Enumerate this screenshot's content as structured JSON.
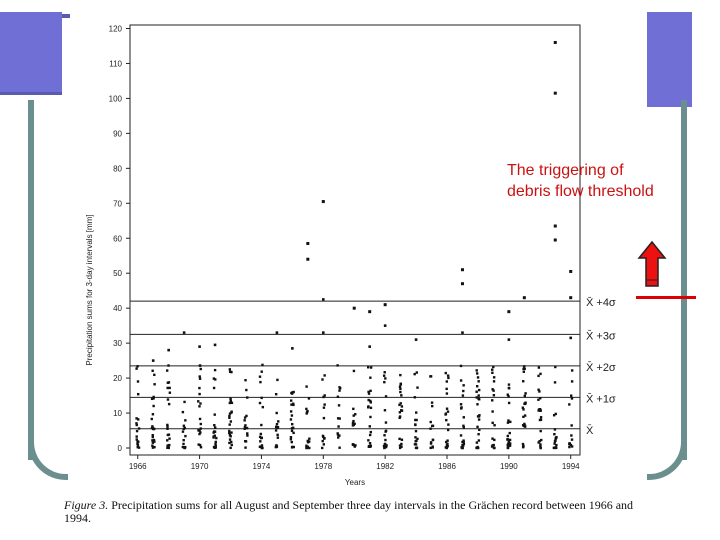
{
  "colors": {
    "frame": "#6b8f8f",
    "blocks": "#6f6fd6",
    "annotation": "#cc1111",
    "arrow": "#ee1111"
  },
  "annotation": {
    "text": "The triggering of\ndebris flow threshold",
    "arrow_icon": "up-arrow-icon"
  },
  "caption": {
    "label": "Figure 3.",
    "text": "Precipitation sums for all August and September three day intervals in the Grächen record between 1966 and 1994."
  },
  "chart_data": {
    "type": "scatter",
    "xlabel": "Years",
    "ylabel": "Precipitation sums for 3-day intervals [mm]",
    "xlim": [
      1965.5,
      1994.6
    ],
    "ylim": [
      -2,
      121
    ],
    "x_ticks": [
      1966,
      1970,
      1974,
      1978,
      1982,
      1986,
      1990,
      1994
    ],
    "y_ticks": [
      0,
      10,
      20,
      30,
      40,
      50,
      60,
      70,
      80,
      90,
      100,
      110,
      120
    ],
    "threshold_lines": [
      {
        "label": "X̄ +4σ",
        "value": 42
      },
      {
        "label": "X̄ +3σ",
        "value": 32.5
      },
      {
        "label": "X̄ +2σ",
        "value": 23.5
      },
      {
        "label": "X̄ +1σ",
        "value": 14.5
      },
      {
        "label": "X̄",
        "value": 5.5
      }
    ],
    "highlights": [
      {
        "year": 1978,
        "value": 70.5
      },
      {
        "year": 1977,
        "value": 58.5
      },
      {
        "year": 1977,
        "value": 54
      },
      {
        "year": 1980,
        "value": 40
      },
      {
        "year": 1981,
        "value": 39
      },
      {
        "year": 1982,
        "value": 41
      },
      {
        "year": 1987,
        "value": 51
      },
      {
        "year": 1987,
        "value": 47
      },
      {
        "year": 1990,
        "value": 39
      },
      {
        "year": 1991,
        "value": 43
      },
      {
        "year": 1993,
        "value": 116
      },
      {
        "year": 1993,
        "value": 101.5
      },
      {
        "year": 1993,
        "value": 63.5
      },
      {
        "year": 1993,
        "value": 59.5
      },
      {
        "year": 1994,
        "value": 50.5
      },
      {
        "year": 1994,
        "value": 43
      }
    ],
    "upper_points": [
      {
        "year": 1969,
        "value": 33
      },
      {
        "year": 1968,
        "value": 28
      },
      {
        "year": 1970,
        "value": 29
      },
      {
        "year": 1971,
        "value": 29.5
      },
      {
        "year": 1975,
        "value": 33
      },
      {
        "year": 1976,
        "value": 28.5
      },
      {
        "year": 1978,
        "value": 33
      },
      {
        "year": 1978,
        "value": 42.5
      },
      {
        "year": 1982,
        "value": 35
      },
      {
        "year": 1984,
        "value": 31
      },
      {
        "year": 1987,
        "value": 33
      },
      {
        "year": 1990,
        "value": 31
      },
      {
        "year": 1994,
        "value": 31.5
      },
      {
        "year": 1967,
        "value": 25
      },
      {
        "year": 1981,
        "value": 29
      }
    ]
  }
}
